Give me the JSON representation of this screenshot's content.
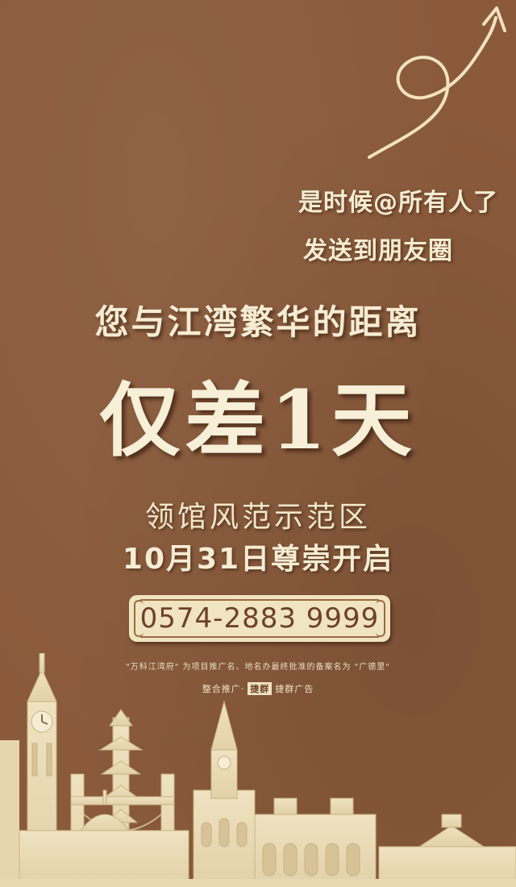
{
  "share": {
    "line1": "是时候@所有人了",
    "line2": "发送到朋友圈"
  },
  "headline": "您与江湾繁华的距离",
  "countdown": "仅差1天",
  "venue": "领馆风范示范区",
  "opening": "10月31日尊崇开启",
  "phone": "0574-2883 9999",
  "disclaimer": "\"万科江湾府\" 为项目推广名、地名办最终批准的备案名为 \"广德里\"",
  "credit": {
    "prefix": "整合推广",
    "brand": "捷群",
    "suffix": "捷群广告"
  },
  "colors": {
    "background": "#8a5a3b",
    "cream": "#f1e4c0",
    "text_dark": "#6e4128"
  },
  "icons": {
    "arrow": "curly-arrow-icon",
    "skyline": "city-skyline-illustration"
  }
}
